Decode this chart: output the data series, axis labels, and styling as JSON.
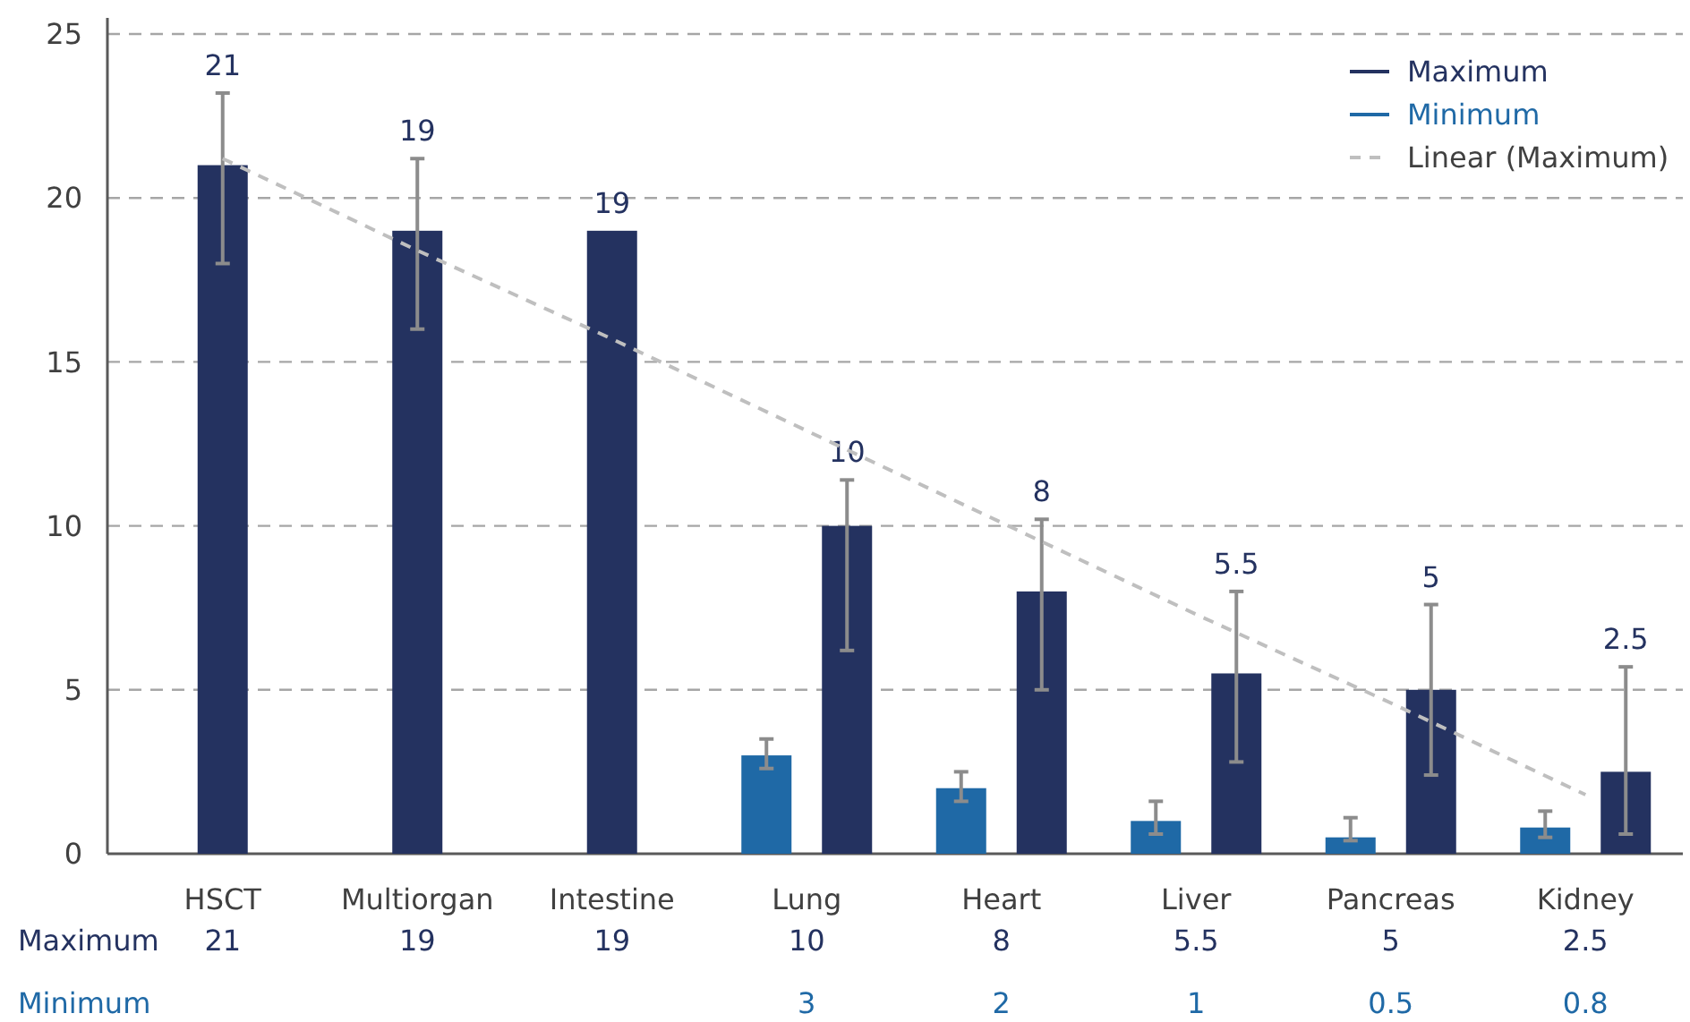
{
  "chart_data": {
    "type": "bar",
    "categories": [
      "HSCT",
      "Multiorgan",
      "Intestine",
      "Lung",
      "Heart",
      "Liver",
      "Pancreas",
      "Kidney"
    ],
    "series": [
      {
        "name": "Maximum",
        "color": "#243260",
        "values": [
          21,
          19,
          19,
          10,
          8,
          5.5,
          5,
          2.5
        ],
        "value_labels": [
          "21",
          "19",
          "19",
          "10",
          "8",
          "5.5",
          "5",
          "2.5"
        ],
        "errors": [
          [
            18,
            23.2
          ],
          [
            16,
            21.2
          ],
          null,
          [
            6.2,
            11.4
          ],
          [
            5,
            10.2
          ],
          [
            2.8,
            8
          ],
          [
            2.4,
            7.6
          ],
          [
            0.6,
            5.7
          ]
        ]
      },
      {
        "name": "Minimum",
        "color": "#1f69a6",
        "values": [
          null,
          null,
          null,
          3,
          2,
          1,
          0.5,
          0.8
        ],
        "value_labels": [
          null,
          null,
          null,
          "3",
          "2",
          "1",
          "0.5",
          "0.8"
        ],
        "errors": [
          null,
          null,
          null,
          [
            2.6,
            3.5
          ],
          [
            1.6,
            2.5
          ],
          [
            0.6,
            1.6
          ],
          [
            0.4,
            1.1
          ],
          [
            0.5,
            1.3
          ]
        ]
      },
      {
        "name": "Linear (Maximum)",
        "type": "line",
        "color": "#bfbfbf",
        "line_style": "dashed",
        "marker": "none",
        "values": [
          21.2,
          18.4,
          15.7,
          12.9,
          10.1,
          7.3,
          4.6,
          1.8
        ]
      }
    ],
    "ylim": [
      0,
      25
    ],
    "yticks": [
      0,
      5,
      10,
      15,
      20,
      25
    ],
    "grid": "y",
    "legend": "top right"
  }
}
